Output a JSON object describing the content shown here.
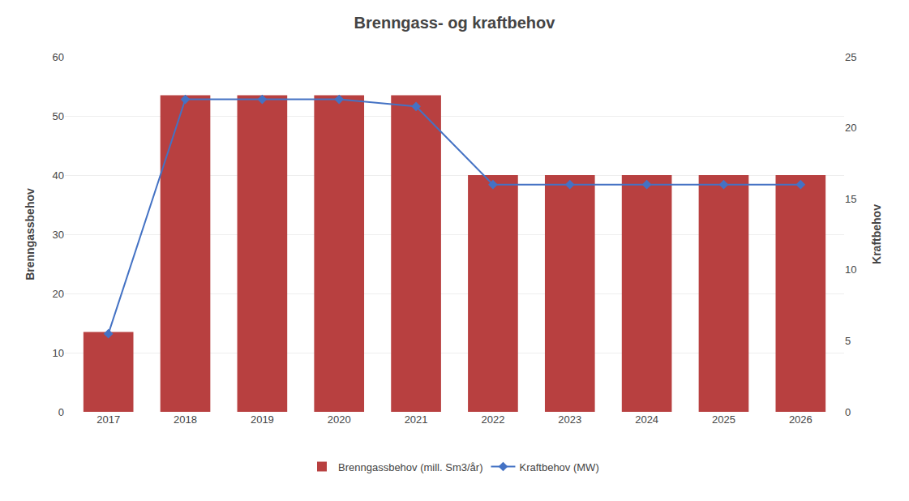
{
  "chart_data": {
    "type": "bar",
    "title": "Brenngass- og kraftbehov",
    "categories": [
      "2017",
      "2018",
      "2019",
      "2020",
      "2021",
      "2022",
      "2023",
      "2024",
      "2025",
      "2026"
    ],
    "series": [
      {
        "name": "Brenngassbehov (mill. Sm3/år)",
        "type": "bar",
        "color": "#b84040",
        "values": [
          13.5,
          53.5,
          53.5,
          53.5,
          53.5,
          40.0,
          40.0,
          40.0,
          40.0,
          40.0
        ]
      },
      {
        "name": "Kraftbehov (MW)",
        "type": "line",
        "axis": "y2",
        "color": "#4472C4",
        "marker": "diamond",
        "values": [
          5.5,
          22.0,
          22.0,
          22.0,
          21.5,
          16.0,
          16.0,
          16.0,
          16.0,
          16.0
        ]
      }
    ],
    "ylabel": "Brenngassbehov",
    "y2label": "Kraftbehov",
    "ylim": [
      0,
      60
    ],
    "yticks": [
      0,
      10,
      20,
      30,
      40,
      50,
      60
    ],
    "y2lim": [
      0,
      25
    ],
    "y2ticks": [
      0,
      5,
      10,
      15,
      20,
      25
    ],
    "grid": true,
    "legend": "bottom"
  }
}
